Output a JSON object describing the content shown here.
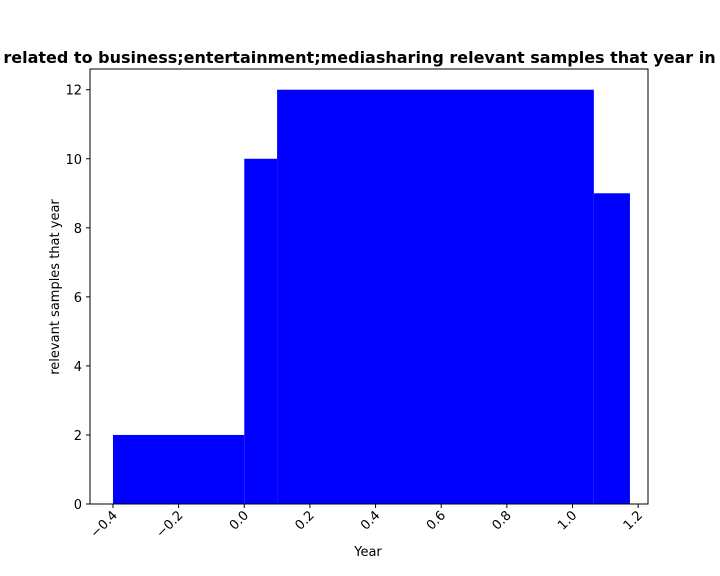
{
  "chart_data": {
    "type": "bar",
    "title": "related to business;entertainment;mediasharing relevant samples that year in p",
    "xlabel": "Year",
    "ylabel": "relevant samples that year",
    "bars": [
      {
        "x0": -0.4,
        "x1": 0.0,
        "value": 2
      },
      {
        "x0": 0.0,
        "x1": 0.1,
        "value": 10
      },
      {
        "x0": 0.1,
        "x1": 1.065,
        "value": 12
      },
      {
        "x0": 1.065,
        "x1": 1.175,
        "value": 9
      }
    ],
    "bar_color": "#0000ff",
    "xlim": [
      -0.47,
      1.23
    ],
    "ylim": [
      0,
      12.6
    ],
    "xticks": [
      -0.4,
      -0.2,
      0.0,
      0.2,
      0.4,
      0.6,
      0.8,
      1.0,
      1.2
    ],
    "xtick_labels": [
      "−0.4",
      "−0.2",
      "0.0",
      "0.2",
      "0.4",
      "0.6",
      "0.8",
      "1.0",
      "1.2"
    ],
    "yticks": [
      0,
      2,
      4,
      6,
      8,
      10,
      12
    ],
    "ytick_labels": [
      "0",
      "2",
      "4",
      "6",
      "8",
      "10",
      "12"
    ],
    "grid": false,
    "legend": "none"
  }
}
